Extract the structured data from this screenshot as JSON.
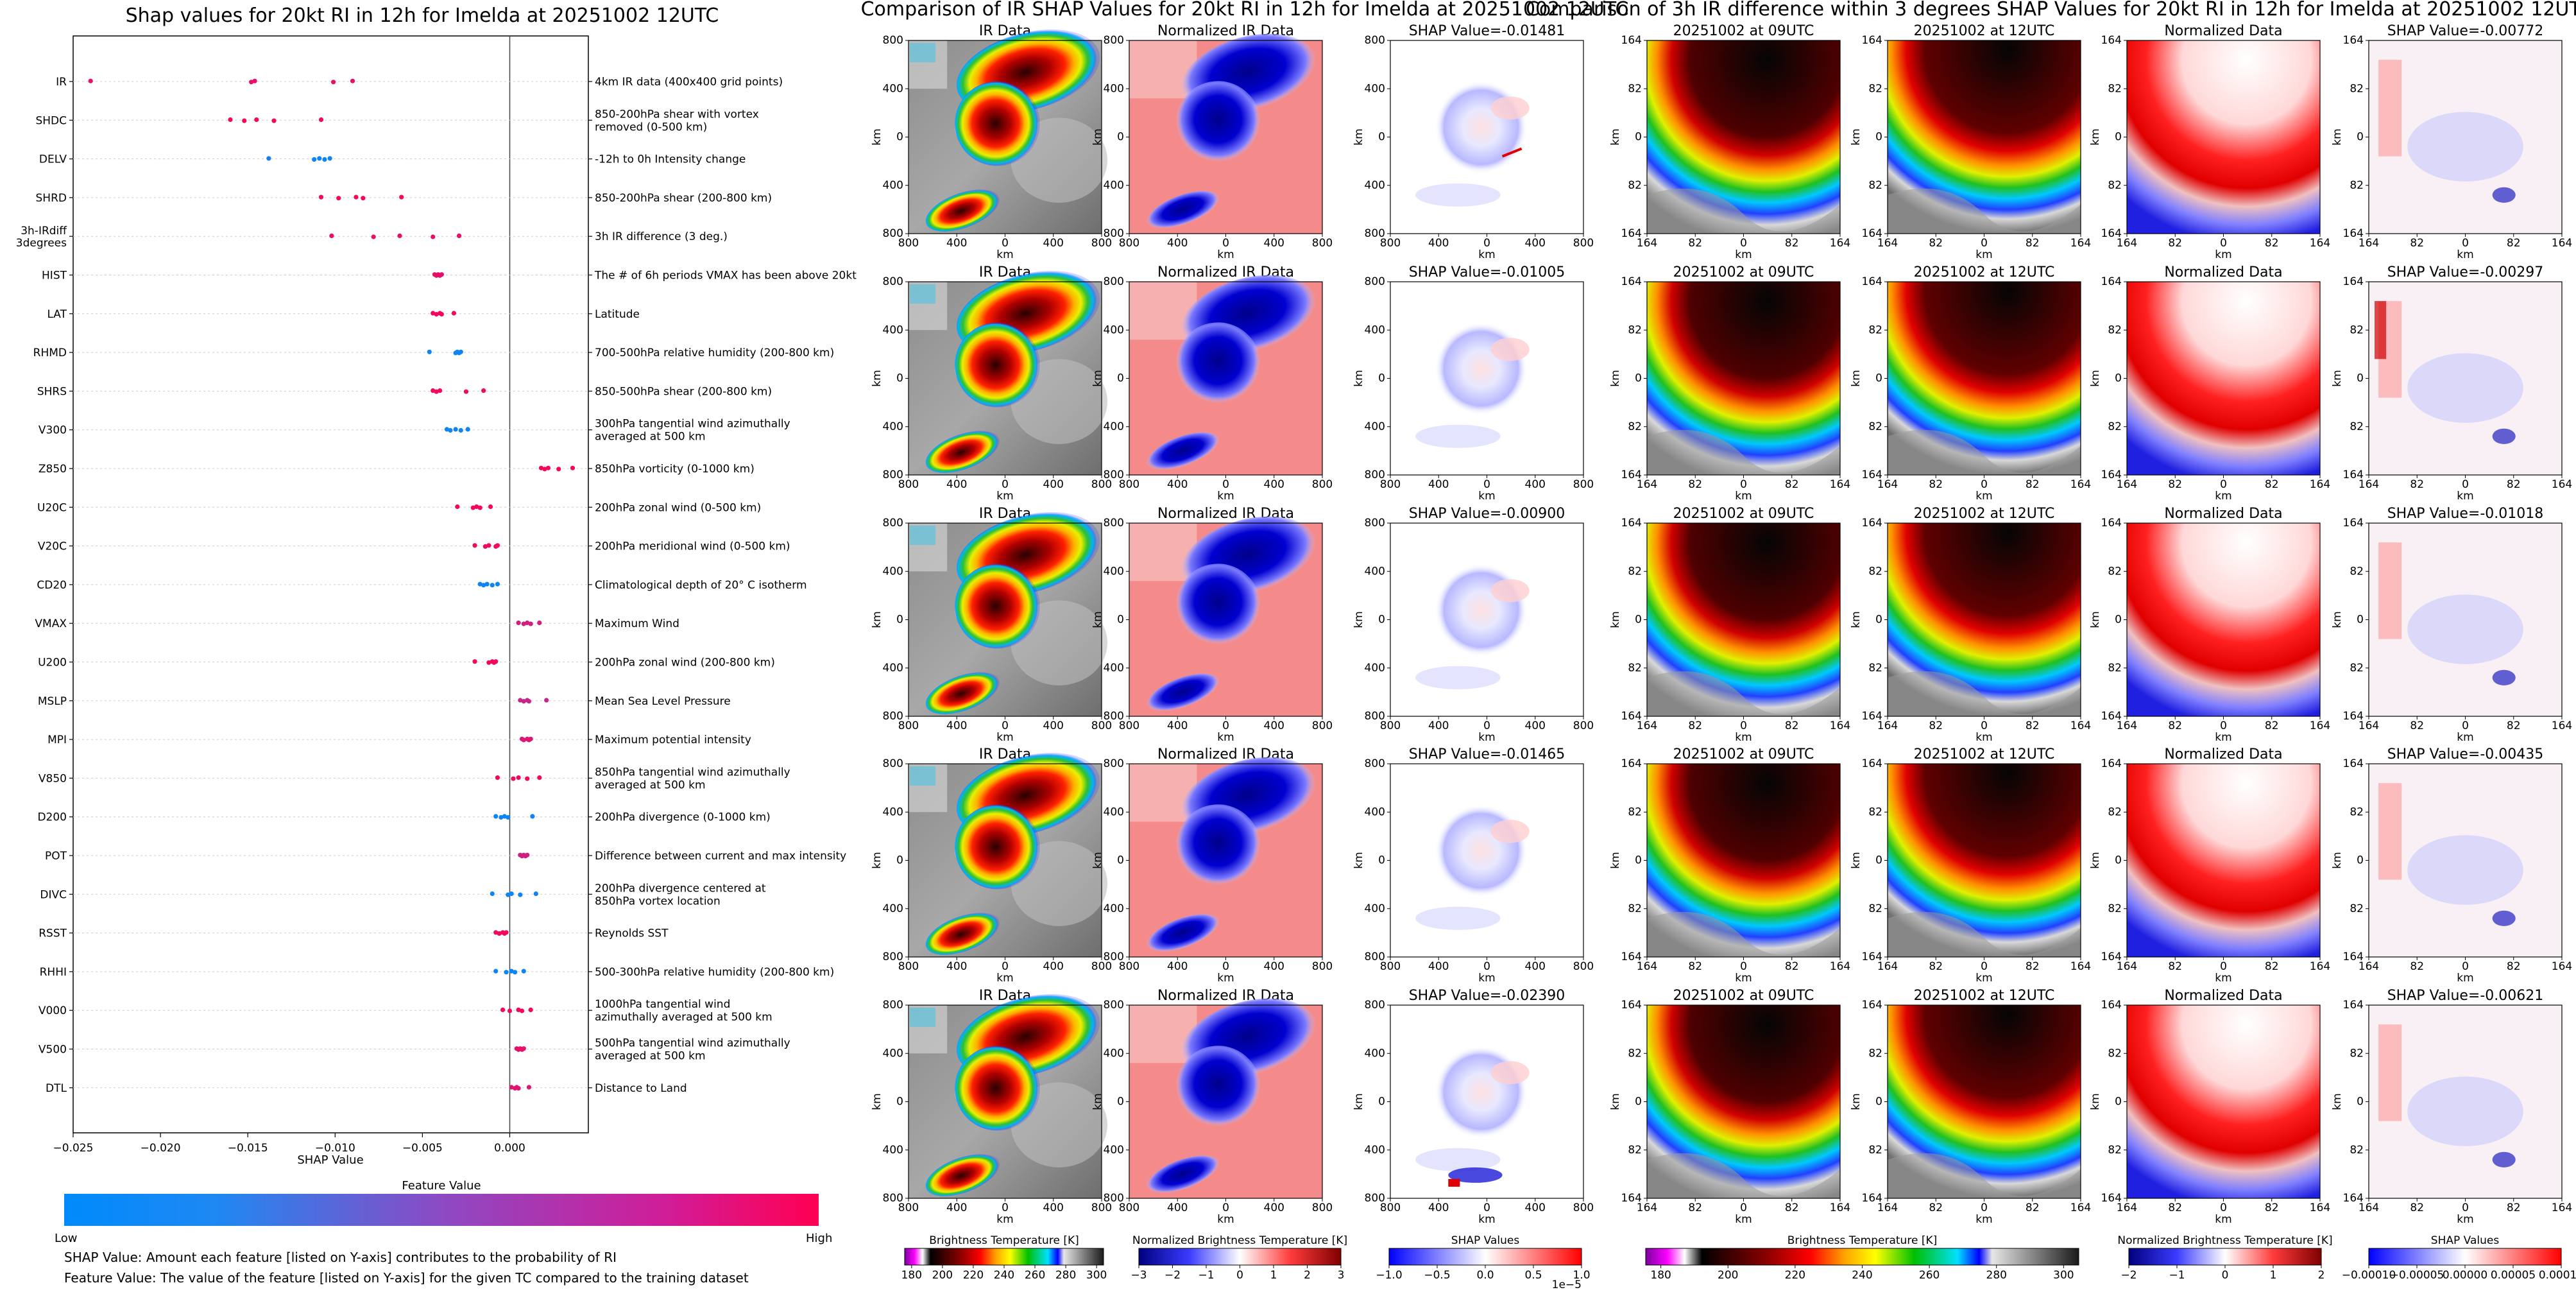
{
  "shap_panel": {
    "title": "Shap values for 20kt RI in 12h for Imelda at 20251002 12UTC",
    "xlabel": "SHAP Value",
    "colorbar_title": "Feature Value",
    "colorbar_low": "Low",
    "colorbar_high": "High",
    "footnote_1": "SHAP Value: Amount each feature [listed on Y-axis] contributes to the probability of RI",
    "footnote_2": "Feature Value: The value of the feature [listed on Y-axis] for the given TC compared to the training dataset"
  },
  "ir_panel": {
    "title": "Comparison of IR SHAP Values for 20kt RI in 12h for Imelda at 20251002 12UTC",
    "col_titles": [
      "IR Data",
      "Normalized IR Data"
    ],
    "shap_titles": [
      "SHAP Value=-0.01481",
      "SHAP Value=-0.01005",
      "SHAP Value=-0.00900",
      "SHAP Value=-0.01465",
      "SHAP Value=-0.02390"
    ],
    "ticks": [
      "800",
      "400",
      "0",
      "400",
      "800"
    ],
    "axis_unit": "km",
    "colorbars": [
      {
        "label": "Brightness Temperature [K]",
        "ticks": [
          "180",
          "200",
          "220",
          "240",
          "260",
          "280",
          "300"
        ]
      },
      {
        "label": "Normalized Brightness Temperature [K]",
        "ticks": [
          "−3",
          "−2",
          "−1",
          "0",
          "1",
          "2",
          "3"
        ]
      },
      {
        "label": "SHAP Values",
        "ticks": [
          "−1.0",
          "−0.5",
          "0.0",
          "0.5",
          "1.0"
        ],
        "exponent": "1e−5"
      }
    ]
  },
  "diff_panel": {
    "title": "Comparison of 3h IR difference within 3 degrees SHAP Values for 20kt RI in 12h for Imelda at 20251002 12UTC",
    "col_titles": [
      "20251002 at 09UTC",
      "20251002 at 12UTC",
      "Normalized Data"
    ],
    "shap_titles": [
      "SHAP Value=-0.00772",
      "SHAP Value=-0.00297",
      "SHAP Value=-0.01018",
      "SHAP Value=-0.00435",
      "SHAP Value=-0.00621"
    ],
    "ticks": [
      "164",
      "82",
      "0",
      "82",
      "164"
    ],
    "axis_unit": "km",
    "colorbars": [
      {
        "label": "Brightness Temperature [K]",
        "ticks": [
          "180",
          "200",
          "220",
          "240",
          "260",
          "280",
          "300"
        ]
      },
      {
        "label": "Normalized Brightness Temperature [K]",
        "ticks": [
          "−2",
          "−1",
          "0",
          "1",
          "2"
        ]
      },
      {
        "label": "SHAP Values",
        "ticks": [
          "−0.00010",
          "−0.00005",
          "0.00000",
          "0.00005",
          "0.00010"
        ]
      }
    ]
  },
  "chart_data": {
    "type": "scatter",
    "title": "Shap values for 20kt RI in 12h for Imelda at 20251002 12UTC",
    "xlabel": "SHAP Value",
    "xlim": [
      -0.025,
      0.0045
    ],
    "xticks": [
      -0.025,
      -0.02,
      -0.015,
      -0.01,
      -0.005,
      0.0
    ],
    "xtick_labels": [
      "−0.025",
      "−0.020",
      "−0.015",
      "−0.010",
      "−0.005",
      "0.000"
    ],
    "features": [
      {
        "name": "IR",
        "desc": "4km IR data (400x400 grid points)",
        "points": [
          [
            -0.024,
            0.9
          ],
          [
            -0.0148,
            0.9
          ],
          [
            -0.0146,
            0.9
          ],
          [
            -0.0101,
            0.9
          ],
          [
            -0.009,
            0.9
          ]
        ]
      },
      {
        "name": "SHDC",
        "desc": "850-200hPa shear with vortex removed (0-500 km)",
        "points": [
          [
            -0.016,
            0.95
          ],
          [
            -0.0152,
            0.95
          ],
          [
            -0.0145,
            0.95
          ],
          [
            -0.0135,
            0.95
          ],
          [
            -0.0108,
            0.95
          ]
        ]
      },
      {
        "name": "DELV",
        "desc": "-12h to 0h Intensity change",
        "points": [
          [
            -0.0138,
            0.1
          ],
          [
            -0.0112,
            0.05
          ],
          [
            -0.0109,
            0.05
          ],
          [
            -0.0106,
            0.05
          ],
          [
            -0.0103,
            0.05
          ]
        ]
      },
      {
        "name": "SHRD",
        "desc": "850-200hPa shear (200-800 km)",
        "points": [
          [
            -0.0108,
            0.95
          ],
          [
            -0.0098,
            0.95
          ],
          [
            -0.0088,
            0.95
          ],
          [
            -0.0084,
            0.95
          ],
          [
            -0.0062,
            0.95
          ]
        ]
      },
      {
        "name": "3h-IRdiff 3degrees",
        "desc": "3h IR difference (3 deg.)",
        "points": [
          [
            -0.0102,
            0.9
          ],
          [
            -0.0078,
            0.9
          ],
          [
            -0.0063,
            0.9
          ],
          [
            -0.0044,
            0.9
          ],
          [
            -0.0029,
            0.9
          ]
        ]
      },
      {
        "name": "HIST",
        "desc": "The # of 6h periods VMAX has been above 20kt",
        "points": [
          [
            -0.0043,
            0.9
          ],
          [
            -0.0042,
            0.9
          ],
          [
            -0.0041,
            0.9
          ],
          [
            -0.004,
            0.9
          ],
          [
            -0.0039,
            0.9
          ]
        ]
      },
      {
        "name": "LAT",
        "desc": "Latitude",
        "points": [
          [
            -0.0044,
            0.95
          ],
          [
            -0.0042,
            0.95
          ],
          [
            -0.004,
            0.95
          ],
          [
            -0.0039,
            0.95
          ],
          [
            -0.0032,
            0.95
          ]
        ]
      },
      {
        "name": "RHMD",
        "desc": "700-500hPa relative humidity (200-800 km)",
        "points": [
          [
            -0.0046,
            0.05
          ],
          [
            -0.0031,
            0.05
          ],
          [
            -0.003,
            0.05
          ],
          [
            -0.0029,
            0.05
          ],
          [
            -0.0028,
            0.05
          ]
        ]
      },
      {
        "name": "SHRS",
        "desc": "850-500hPa shear (200-800 km)",
        "points": [
          [
            -0.0044,
            0.95
          ],
          [
            -0.0042,
            0.95
          ],
          [
            -0.004,
            0.95
          ],
          [
            -0.0025,
            0.95
          ],
          [
            -0.0015,
            0.95
          ]
        ]
      },
      {
        "name": "V300",
        "desc": "300hPa tangential wind azimuthally averaged at 500 km",
        "points": [
          [
            -0.0036,
            0.05
          ],
          [
            -0.0034,
            0.05
          ],
          [
            -0.0031,
            0.05
          ],
          [
            -0.0028,
            0.05
          ],
          [
            -0.0024,
            0.05
          ]
        ]
      },
      {
        "name": "Z850",
        "desc": "850hPa vorticity (0-1000 km)",
        "points": [
          [
            0.0018,
            0.95
          ],
          [
            0.002,
            0.95
          ],
          [
            0.0022,
            0.95
          ],
          [
            0.0028,
            0.95
          ],
          [
            0.0036,
            0.95
          ]
        ]
      },
      {
        "name": "U20C",
        "desc": "200hPa zonal wind (0-500 km)",
        "points": [
          [
            -0.003,
            0.95
          ],
          [
            -0.0021,
            0.95
          ],
          [
            -0.0019,
            0.95
          ],
          [
            -0.0017,
            0.95
          ],
          [
            -0.0011,
            0.95
          ]
        ]
      },
      {
        "name": "V20C",
        "desc": "200hPa meridional wind (0-500 km)",
        "points": [
          [
            -0.002,
            0.95
          ],
          [
            -0.0014,
            0.95
          ],
          [
            -0.0012,
            0.95
          ],
          [
            -0.0008,
            0.95
          ],
          [
            -0.0007,
            0.95
          ]
        ]
      },
      {
        "name": "CD20",
        "desc": "Climatological depth of 20° C isotherm",
        "points": [
          [
            -0.0017,
            0.05
          ],
          [
            -0.0015,
            0.05
          ],
          [
            -0.0013,
            0.05
          ],
          [
            -0.001,
            0.05
          ],
          [
            -0.0007,
            0.05
          ]
        ]
      },
      {
        "name": "VMAX",
        "desc": "Maximum Wind",
        "points": [
          [
            0.0005,
            0.8
          ],
          [
            0.0008,
            0.8
          ],
          [
            0.001,
            0.8
          ],
          [
            0.0012,
            0.8
          ],
          [
            0.0017,
            0.8
          ]
        ]
      },
      {
        "name": "U200",
        "desc": "200hPa zonal wind (200-800 km)",
        "points": [
          [
            -0.002,
            0.95
          ],
          [
            -0.0012,
            0.95
          ],
          [
            -0.001,
            0.95
          ],
          [
            -0.0009,
            0.95
          ],
          [
            -0.0008,
            0.95
          ]
        ]
      },
      {
        "name": "MSLP",
        "desc": "Mean Sea Level Pressure",
        "points": [
          [
            0.0006,
            0.75
          ],
          [
            0.0008,
            0.75
          ],
          [
            0.001,
            0.75
          ],
          [
            0.0011,
            0.75
          ],
          [
            0.0021,
            0.75
          ]
        ]
      },
      {
        "name": "MPI",
        "desc": "Maximum potential intensity",
        "points": [
          [
            0.0007,
            0.85
          ],
          [
            0.0008,
            0.85
          ],
          [
            0.001,
            0.85
          ],
          [
            0.0011,
            0.85
          ],
          [
            0.0012,
            0.85
          ]
        ]
      },
      {
        "name": "V850",
        "desc": "850hPa tangential wind azimuthally averaged at 500 km",
        "points": [
          [
            -0.0007,
            0.95
          ],
          [
            0.0002,
            0.95
          ],
          [
            0.0005,
            0.95
          ],
          [
            0.001,
            0.95
          ],
          [
            0.0017,
            0.95
          ]
        ]
      },
      {
        "name": "D200",
        "desc": "200hPa divergence (0-1000 km)",
        "points": [
          [
            -0.0008,
            0.05
          ],
          [
            -0.0005,
            0.05
          ],
          [
            -0.0003,
            0.05
          ],
          [
            -0.0001,
            0.05
          ],
          [
            0.0013,
            0.05
          ]
        ]
      },
      {
        "name": "POT",
        "desc": "Difference between current and max intensity",
        "points": [
          [
            0.0006,
            0.8
          ],
          [
            0.0007,
            0.8
          ],
          [
            0.0008,
            0.8
          ],
          [
            0.0009,
            0.8
          ],
          [
            0.001,
            0.8
          ]
        ]
      },
      {
        "name": "DIVC",
        "desc": "200hPa divergence centered at 850hPa vortex location",
        "points": [
          [
            -0.001,
            0.05
          ],
          [
            -0.0001,
            0.05
          ],
          [
            0.0001,
            0.05
          ],
          [
            0.0006,
            0.05
          ],
          [
            0.0015,
            0.05
          ]
        ]
      },
      {
        "name": "RSST",
        "desc": "Reynolds SST",
        "points": [
          [
            -0.0008,
            0.95
          ],
          [
            -0.0006,
            0.95
          ],
          [
            -0.0004,
            0.95
          ],
          [
            -0.0003,
            0.95
          ],
          [
            -0.0002,
            0.95
          ]
        ]
      },
      {
        "name": "RHHI",
        "desc": "500-300hPa relative humidity (200-800 km)",
        "points": [
          [
            -0.0008,
            0.05
          ],
          [
            -0.0002,
            0.05
          ],
          [
            0.0001,
            0.05
          ],
          [
            0.0003,
            0.05
          ],
          [
            0.0008,
            0.05
          ]
        ]
      },
      {
        "name": "V000",
        "desc": "1000hPa tangential wind azimuthally averaged at 500 km",
        "points": [
          [
            -0.0004,
            0.95
          ],
          [
            0.0,
            0.95
          ],
          [
            0.0005,
            0.95
          ],
          [
            0.0007,
            0.95
          ],
          [
            0.0012,
            0.95
          ]
        ]
      },
      {
        "name": "V500",
        "desc": "500hPa tangential wind azimuthally averaged at 500 km",
        "points": [
          [
            0.0004,
            0.9
          ],
          [
            0.0005,
            0.9
          ],
          [
            0.0006,
            0.9
          ],
          [
            0.0007,
            0.9
          ],
          [
            0.0008,
            0.9
          ]
        ]
      },
      {
        "name": "DTL",
        "desc": "Distance to Land",
        "points": [
          [
            0.0001,
            0.85
          ],
          [
            0.0003,
            0.85
          ],
          [
            0.0004,
            0.85
          ],
          [
            0.0005,
            0.85
          ],
          [
            0.0011,
            0.85
          ]
        ]
      }
    ]
  }
}
